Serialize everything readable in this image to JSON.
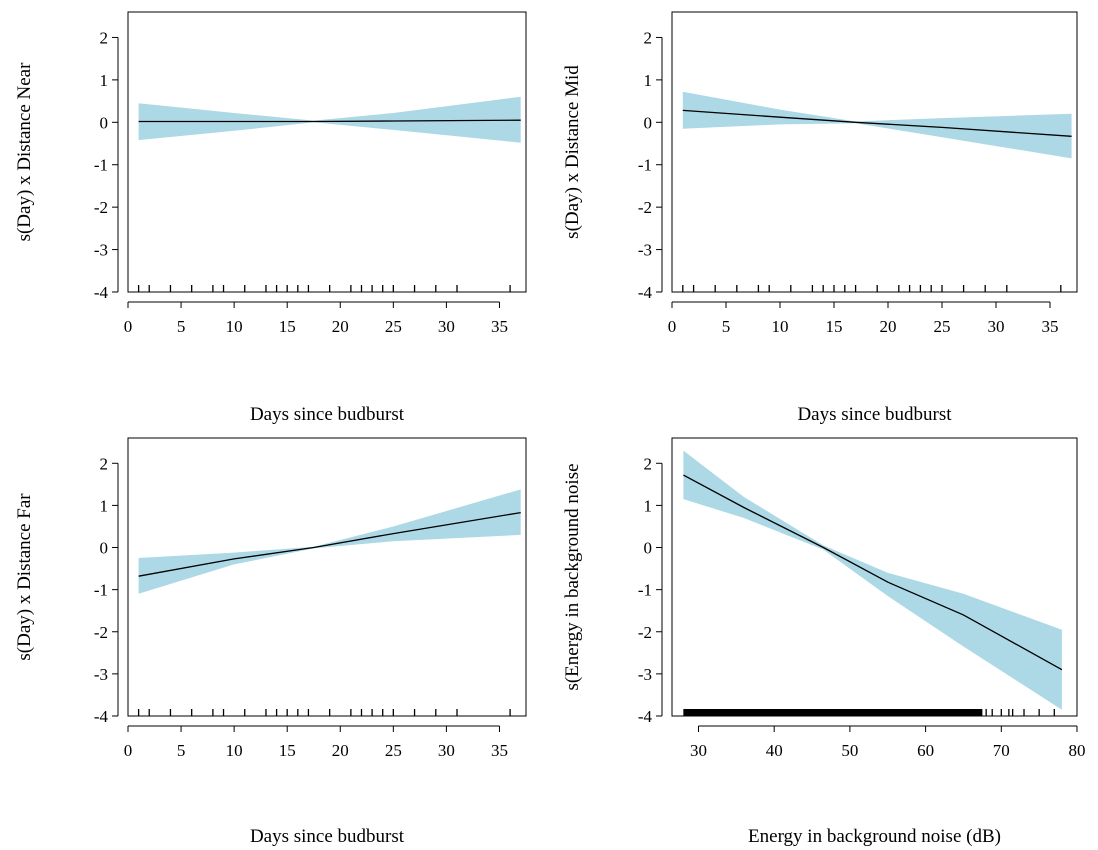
{
  "colors": {
    "band": "#ADD8E6",
    "line": "#000000",
    "axis": "#000000",
    "background": "#ffffff"
  },
  "chart_data": [
    {
      "type": "line",
      "title": "",
      "xlabel": "Days since budburst",
      "ylabel": "s(Day) x Distance Near",
      "xlim": [
        0,
        37.5
      ],
      "ylim": [
        -4,
        2.6
      ],
      "xticks": [
        0,
        5,
        10,
        15,
        20,
        25,
        30,
        35
      ],
      "yticks": [
        -4,
        -3,
        -2,
        -1,
        0,
        1,
        2
      ],
      "series": [
        {
          "x": [
            1,
            10,
            17.5,
            25,
            37
          ],
          "y": [
            0.02,
            0.02,
            0.02,
            0.03,
            0.05
          ],
          "lower": [
            -0.42,
            -0.2,
            0.0,
            -0.18,
            -0.48
          ],
          "upper": [
            0.45,
            0.22,
            0.04,
            0.22,
            0.6
          ]
        }
      ],
      "rug": [
        1,
        2,
        4,
        6,
        8,
        9,
        11,
        13,
        14,
        15,
        16,
        17,
        19,
        21,
        22,
        23,
        24,
        25,
        27,
        29,
        31,
        36
      ]
    },
    {
      "type": "line",
      "title": "",
      "xlabel": "Days since budburst",
      "ylabel": "s(Day) x Distance Mid",
      "xlim": [
        0,
        37.5
      ],
      "ylim": [
        -4,
        2.6
      ],
      "xticks": [
        0,
        5,
        10,
        15,
        20,
        25,
        30,
        35
      ],
      "yticks": [
        -4,
        -3,
        -2,
        -1,
        0,
        1,
        2
      ],
      "series": [
        {
          "x": [
            1,
            10,
            17,
            25,
            37
          ],
          "y": [
            0.28,
            0.12,
            0.0,
            -0.12,
            -0.33
          ],
          "lower": [
            -0.15,
            -0.05,
            -0.02,
            -0.35,
            -0.85
          ],
          "upper": [
            0.72,
            0.3,
            0.02,
            0.1,
            0.2
          ]
        }
      ],
      "rug": [
        1,
        2,
        4,
        6,
        8,
        9,
        11,
        13,
        14,
        15,
        16,
        17,
        19,
        21,
        22,
        23,
        24,
        25,
        27,
        29,
        31,
        36
      ]
    },
    {
      "type": "line",
      "title": "",
      "xlabel": "Days since budburst",
      "ylabel": "s(Day) x Distance Far",
      "xlim": [
        0,
        37.5
      ],
      "ylim": [
        -4,
        2.6
      ],
      "xticks": [
        0,
        5,
        10,
        15,
        20,
        25,
        30,
        35
      ],
      "yticks": [
        -4,
        -3,
        -2,
        -1,
        0,
        1,
        2
      ],
      "series": [
        {
          "x": [
            1,
            10,
            17.5,
            25,
            37
          ],
          "y": [
            -0.68,
            -0.27,
            0.0,
            0.33,
            0.83
          ],
          "lower": [
            -1.1,
            -0.4,
            -0.02,
            0.15,
            0.3
          ],
          "upper": [
            -0.25,
            -0.12,
            0.02,
            0.5,
            1.38
          ]
        }
      ],
      "rug": [
        1,
        2,
        4,
        6,
        8,
        9,
        11,
        13,
        14,
        15,
        16,
        17,
        19,
        21,
        22,
        23,
        24,
        25,
        27,
        29,
        31,
        36
      ]
    },
    {
      "type": "line",
      "title": "",
      "xlabel": "Energy in background noise (dB)",
      "ylabel": "s(Energy in background noise",
      "xlim": [
        26.5,
        80
      ],
      "ylim": [
        -4,
        2.6
      ],
      "xticks": [
        30,
        40,
        50,
        60,
        70,
        80
      ],
      "yticks": [
        -4,
        -3,
        -2,
        -1,
        0,
        1,
        2
      ],
      "series": [
        {
          "x": [
            28,
            36,
            46.5,
            55,
            65,
            78
          ],
          "y": [
            1.72,
            0.95,
            0.0,
            -0.82,
            -1.6,
            -2.9
          ],
          "lower": [
            1.15,
            0.7,
            -0.05,
            -1.15,
            -2.35,
            -3.85
          ],
          "upper": [
            2.3,
            1.2,
            0.05,
            -0.6,
            -1.1,
            -1.95
          ]
        }
      ],
      "rug_dense": [
        28,
        67.5
      ],
      "rug": [
        68,
        68.8,
        70,
        71,
        71.5,
        73,
        75,
        77
      ]
    }
  ]
}
